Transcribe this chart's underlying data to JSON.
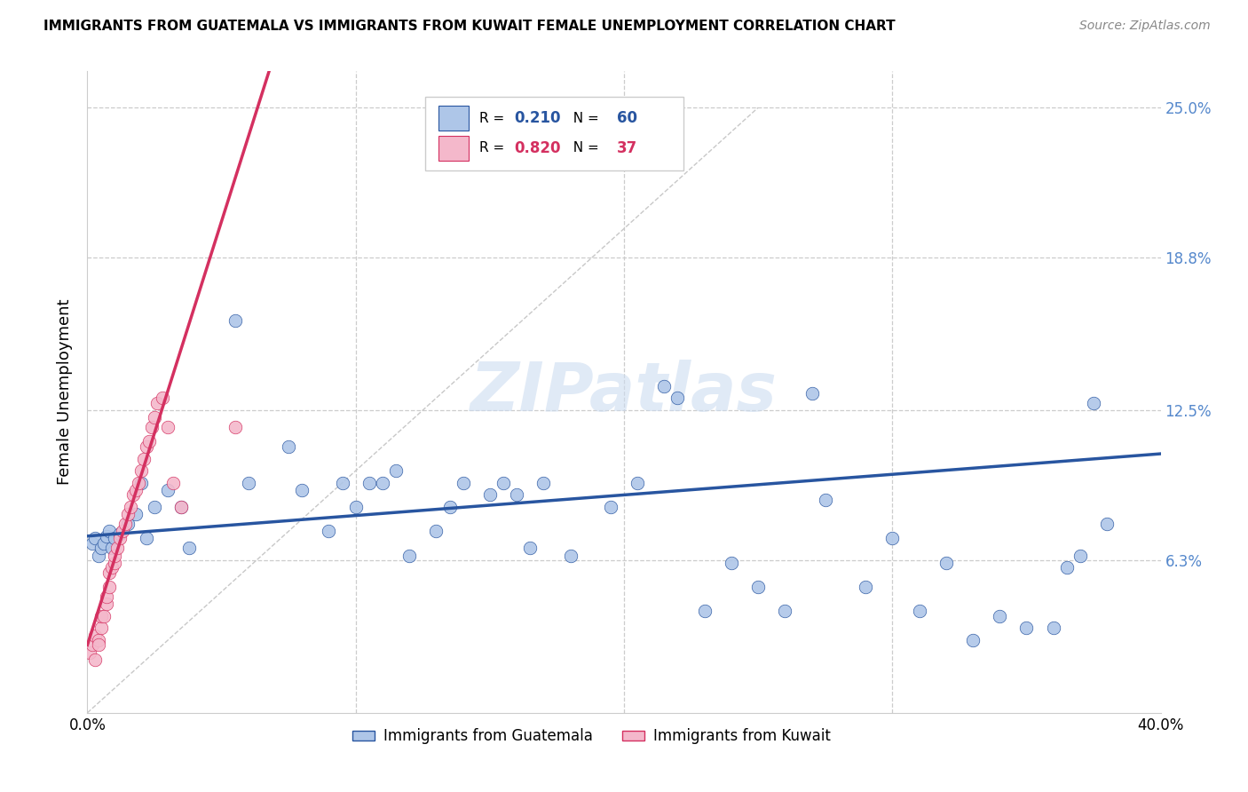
{
  "title": "IMMIGRANTS FROM GUATEMALA VS IMMIGRANTS FROM KUWAIT FEMALE UNEMPLOYMENT CORRELATION CHART",
  "source": "Source: ZipAtlas.com",
  "ylabel": "Female Unemployment",
  "ytick_labels": [
    "6.3%",
    "12.5%",
    "18.8%",
    "25.0%"
  ],
  "ytick_values": [
    0.063,
    0.125,
    0.188,
    0.25
  ],
  "xlim": [
    0.0,
    0.4
  ],
  "ylim": [
    0.0,
    0.265
  ],
  "r_guatemala": 0.21,
  "n_guatemala": 60,
  "r_kuwait": 0.82,
  "n_kuwait": 37,
  "color_guatemala": "#aec6e8",
  "color_kuwait": "#f4b8cb",
  "color_line_guatemala": "#2855a0",
  "color_line_kuwait": "#d43060",
  "watermark": "ZIPatlas",
  "guatemala_x": [
    0.002,
    0.003,
    0.004,
    0.005,
    0.006,
    0.007,
    0.008,
    0.009,
    0.01,
    0.012,
    0.015,
    0.018,
    0.02,
    0.022,
    0.025,
    0.03,
    0.035,
    0.038,
    0.055,
    0.06,
    0.075,
    0.08,
    0.09,
    0.095,
    0.1,
    0.105,
    0.11,
    0.115,
    0.12,
    0.13,
    0.135,
    0.14,
    0.15,
    0.155,
    0.16,
    0.165,
    0.17,
    0.18,
    0.195,
    0.205,
    0.215,
    0.22,
    0.23,
    0.24,
    0.25,
    0.26,
    0.27,
    0.275,
    0.29,
    0.3,
    0.31,
    0.32,
    0.33,
    0.34,
    0.35,
    0.36,
    0.365,
    0.37,
    0.375,
    0.38
  ],
  "guatemala_y": [
    0.07,
    0.072,
    0.065,
    0.068,
    0.07,
    0.073,
    0.075,
    0.068,
    0.072,
    0.074,
    0.078,
    0.082,
    0.095,
    0.072,
    0.085,
    0.092,
    0.085,
    0.068,
    0.162,
    0.095,
    0.11,
    0.092,
    0.075,
    0.095,
    0.085,
    0.095,
    0.095,
    0.1,
    0.065,
    0.075,
    0.085,
    0.095,
    0.09,
    0.095,
    0.09,
    0.068,
    0.095,
    0.065,
    0.085,
    0.095,
    0.135,
    0.13,
    0.042,
    0.062,
    0.052,
    0.042,
    0.132,
    0.088,
    0.052,
    0.072,
    0.042,
    0.062,
    0.03,
    0.04,
    0.035,
    0.035,
    0.06,
    0.065,
    0.128,
    0.078
  ],
  "kuwait_x": [
    0.001,
    0.002,
    0.003,
    0.003,
    0.004,
    0.004,
    0.005,
    0.005,
    0.006,
    0.007,
    0.007,
    0.008,
    0.008,
    0.009,
    0.01,
    0.01,
    0.011,
    0.012,
    0.013,
    0.014,
    0.015,
    0.016,
    0.017,
    0.018,
    0.019,
    0.02,
    0.021,
    0.022,
    0.023,
    0.024,
    0.025,
    0.026,
    0.028,
    0.03,
    0.032,
    0.035,
    0.055
  ],
  "kuwait_y": [
    0.025,
    0.028,
    0.032,
    0.022,
    0.03,
    0.028,
    0.035,
    0.04,
    0.04,
    0.045,
    0.048,
    0.052,
    0.058,
    0.06,
    0.062,
    0.065,
    0.068,
    0.072,
    0.075,
    0.078,
    0.082,
    0.085,
    0.09,
    0.092,
    0.095,
    0.1,
    0.105,
    0.11,
    0.112,
    0.118,
    0.122,
    0.128,
    0.13,
    0.118,
    0.095,
    0.085,
    0.118
  ]
}
